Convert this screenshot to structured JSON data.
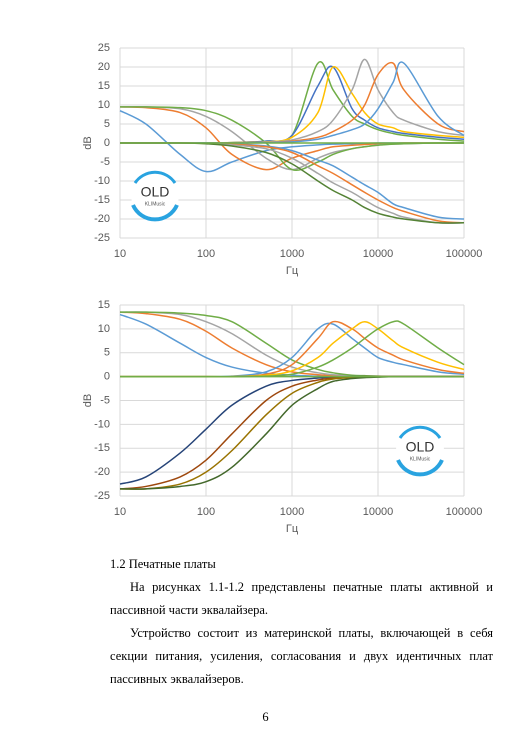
{
  "charts": [
    {
      "type": "line",
      "ylabel": "dB",
      "xlabel": "Гц",
      "log_x": true,
      "grid": true,
      "logo": {
        "title": "OLD",
        "subtitle": "KLIMusic"
      },
      "x": [
        10,
        20,
        50,
        100,
        200,
        500,
        1000,
        2000,
        3000,
        5000,
        7000,
        10000,
        15000,
        20000,
        50000,
        100000
      ],
      "xlim": [
        10,
        100000
      ],
      "xticks": [
        10,
        100,
        1000,
        10000,
        100000
      ],
      "ylim": [
        -25,
        25
      ],
      "yticks": [
        -25,
        -20,
        -15,
        -10,
        -5,
        0,
        5,
        10,
        15,
        20,
        25
      ],
      "series": [
        {
          "color": "#5b9bd5",
          "values": [
            8.5,
            5,
            -3,
            -7.5,
            -5,
            -2,
            -1,
            -0.5,
            -0.3,
            -0.2,
            -0.1,
            0,
            0,
            0,
            0,
            0
          ]
        },
        {
          "color": "#ed7d31",
          "values": [
            9.5,
            9.3,
            8,
            4,
            -3,
            -7,
            -4,
            -2,
            -1,
            -0.6,
            -0.4,
            -0.2,
            -0.1,
            0,
            0,
            0
          ]
        },
        {
          "color": "#a5a5a5",
          "values": [
            9.5,
            9.5,
            9,
            7,
            3,
            -4,
            -7,
            -4,
            -2.5,
            -1.5,
            -1,
            -0.5,
            -0.3,
            -0.2,
            0,
            0
          ]
        },
        {
          "color": "#70ad47",
          "values": [
            9.5,
            9.5,
            9.3,
            8.5,
            6,
            0,
            -7,
            -5,
            -3,
            -1.5,
            -1,
            -0.6,
            -0.3,
            -0.2,
            0,
            0
          ]
        },
        {
          "color": "#70ad47",
          "values": [
            0,
            0,
            0,
            0,
            0.1,
            0.5,
            2,
            21,
            14,
            7,
            5,
            3.5,
            2.5,
            2,
            1,
            0.5
          ]
        },
        {
          "color": "#4472c4",
          "values": [
            0,
            0,
            0,
            0,
            0.1,
            0.5,
            2,
            15,
            20,
            9,
            6,
            4,
            3,
            2.5,
            1.5,
            1
          ]
        },
        {
          "color": "#ffc000",
          "values": [
            0,
            0,
            0,
            0,
            0.1,
            0.3,
            1.5,
            8,
            20,
            13,
            8,
            5,
            4,
            3,
            2,
            1.5
          ]
        },
        {
          "color": "#a5a5a5",
          "values": [
            0,
            0,
            0,
            0,
            0,
            0.2,
            0.8,
            3,
            6,
            14,
            22,
            14,
            8,
            6,
            3,
            2
          ]
        },
        {
          "color": "#ed7d31",
          "values": [
            0,
            0,
            0,
            0,
            0,
            0.1,
            0.5,
            1.5,
            3,
            6,
            10,
            18,
            21,
            14,
            5,
            3
          ]
        },
        {
          "color": "#5b9bd5",
          "values": [
            0,
            0,
            0,
            0,
            0,
            0.1,
            0.3,
            1,
            2,
            3.5,
            5,
            9,
            16,
            21,
            7,
            2
          ]
        },
        {
          "color": "#5b9bd5",
          "values": [
            0,
            0,
            0,
            0,
            -0.2,
            -0.8,
            -2,
            -4.5,
            -6,
            -9,
            -11,
            -13,
            -16,
            -17,
            -19.5,
            -20
          ]
        },
        {
          "color": "#ed7d31",
          "values": [
            0,
            0,
            0,
            -0.1,
            -0.3,
            -1,
            -2.5,
            -6,
            -8,
            -11,
            -13,
            -15,
            -17,
            -18,
            -20.5,
            -21
          ]
        },
        {
          "color": "#a5a5a5",
          "values": [
            0,
            0,
            0,
            -0.1,
            -0.5,
            -1.5,
            -4,
            -8,
            -10.5,
            -13,
            -15,
            -17,
            -18.5,
            -19.5,
            -21,
            -21
          ]
        },
        {
          "color": "#548235",
          "values": [
            0,
            0,
            0,
            -0.2,
            -0.8,
            -2.5,
            -5.5,
            -10,
            -12.5,
            -15,
            -17,
            -18.5,
            -19.5,
            -20,
            -21,
            -21
          ]
        },
        {
          "color": "#70ad47",
          "values": [
            0,
            0,
            0,
            0,
            0,
            0,
            0,
            0,
            0,
            0,
            0,
            0,
            0,
            0,
            0,
            0
          ]
        }
      ]
    },
    {
      "type": "line",
      "ylabel": "dB",
      "xlabel": "Гц",
      "log_x": true,
      "grid": true,
      "logo": {
        "title": "OLD",
        "subtitle": "KLIMusic"
      },
      "x": [
        10,
        20,
        50,
        100,
        200,
        500,
        1000,
        2000,
        3000,
        5000,
        7000,
        10000,
        15000,
        20000,
        50000,
        100000
      ],
      "xlim": [
        10,
        100000
      ],
      "xticks": [
        10,
        100,
        1000,
        10000,
        100000
      ],
      "ylim": [
        -25,
        15
      ],
      "yticks": [
        -25,
        -20,
        -15,
        -10,
        -5,
        0,
        5,
        10,
        15
      ],
      "series": [
        {
          "color": "#5b9bd5",
          "values": [
            13,
            11,
            7,
            4,
            2,
            0.7,
            0.3,
            0.1,
            0,
            0,
            0,
            0,
            0,
            0,
            0,
            0
          ]
        },
        {
          "color": "#ed7d31",
          "values": [
            13.5,
            13.2,
            12,
            9.5,
            6,
            2.5,
            1,
            0.4,
            0.2,
            0.1,
            0,
            0,
            0,
            0,
            0,
            0
          ]
        },
        {
          "color": "#a5a5a5",
          "values": [
            13.5,
            13.5,
            13,
            11.5,
            9,
            4.5,
            2,
            0.8,
            0.4,
            0.2,
            0.1,
            0,
            0,
            0,
            0,
            0
          ]
        },
        {
          "color": "#70ad47",
          "values": [
            13.5,
            13.5,
            13.3,
            12.8,
            11.5,
            7,
            3.5,
            1.5,
            0.8,
            0.3,
            0.2,
            0.1,
            0,
            0,
            0,
            0
          ]
        },
        {
          "color": "#5b9bd5",
          "values": [
            0,
            0,
            0,
            0,
            0.1,
            1,
            4,
            10,
            11,
            8,
            6,
            4,
            3,
            2.5,
            1,
            0.5
          ]
        },
        {
          "color": "#ed7d31",
          "values": [
            0,
            0,
            0,
            0,
            0,
            0.5,
            2.5,
            8,
            11.5,
            10,
            8,
            6,
            4.5,
            3.5,
            1.5,
            0.7
          ]
        },
        {
          "color": "#ffc000",
          "values": [
            0,
            0,
            0,
            0,
            0,
            0.3,
            1.2,
            4,
            7,
            10,
            11.5,
            10,
            7.5,
            6,
            3,
            1.5
          ]
        },
        {
          "color": "#70ad47",
          "values": [
            0,
            0,
            0,
            0,
            0,
            0.1,
            0.5,
            2,
            3.5,
            6,
            8,
            10,
            11.5,
            11,
            6,
            2.5
          ]
        },
        {
          "color": "#264478",
          "values": [
            -22.5,
            -21,
            -16,
            -11,
            -6,
            -2,
            -0.8,
            -0.3,
            -0.1,
            0,
            0,
            0,
            0,
            0,
            0,
            0
          ]
        },
        {
          "color": "#9e480e",
          "values": [
            -23.5,
            -23,
            -21,
            -17.5,
            -12,
            -5,
            -2,
            -0.7,
            -0.3,
            -0.1,
            0,
            0,
            0,
            0,
            0,
            0
          ]
        },
        {
          "color": "#997300",
          "values": [
            -23.5,
            -23.5,
            -22.5,
            -20,
            -15.5,
            -8,
            -3.5,
            -1.2,
            -0.5,
            -0.2,
            -0.1,
            0,
            0,
            0,
            0,
            0
          ]
        },
        {
          "color": "#43682b",
          "values": [
            -23.5,
            -23.5,
            -23,
            -22,
            -19,
            -12,
            -6,
            -2.5,
            -1,
            -0.4,
            -0.2,
            -0.1,
            0,
            0,
            0,
            0
          ]
        },
        {
          "color": "#70ad47",
          "values": [
            0,
            0,
            0,
            0,
            0,
            0,
            0,
            0,
            0,
            0,
            0,
            0,
            0,
            0,
            0,
            0
          ]
        }
      ]
    }
  ],
  "section": {
    "heading": "1.2 Печатные платы",
    "paragraphs": [
      "На рисунках 1.1-1.2 представлены печатные платы активной и пассивной части эквалайзера.",
      "Устройство состоит из материнской платы, включающей в себя секции питания, усиления, согласования и двух идентичных плат пассивных эквалайзеров."
    ]
  },
  "page_number": "6"
}
